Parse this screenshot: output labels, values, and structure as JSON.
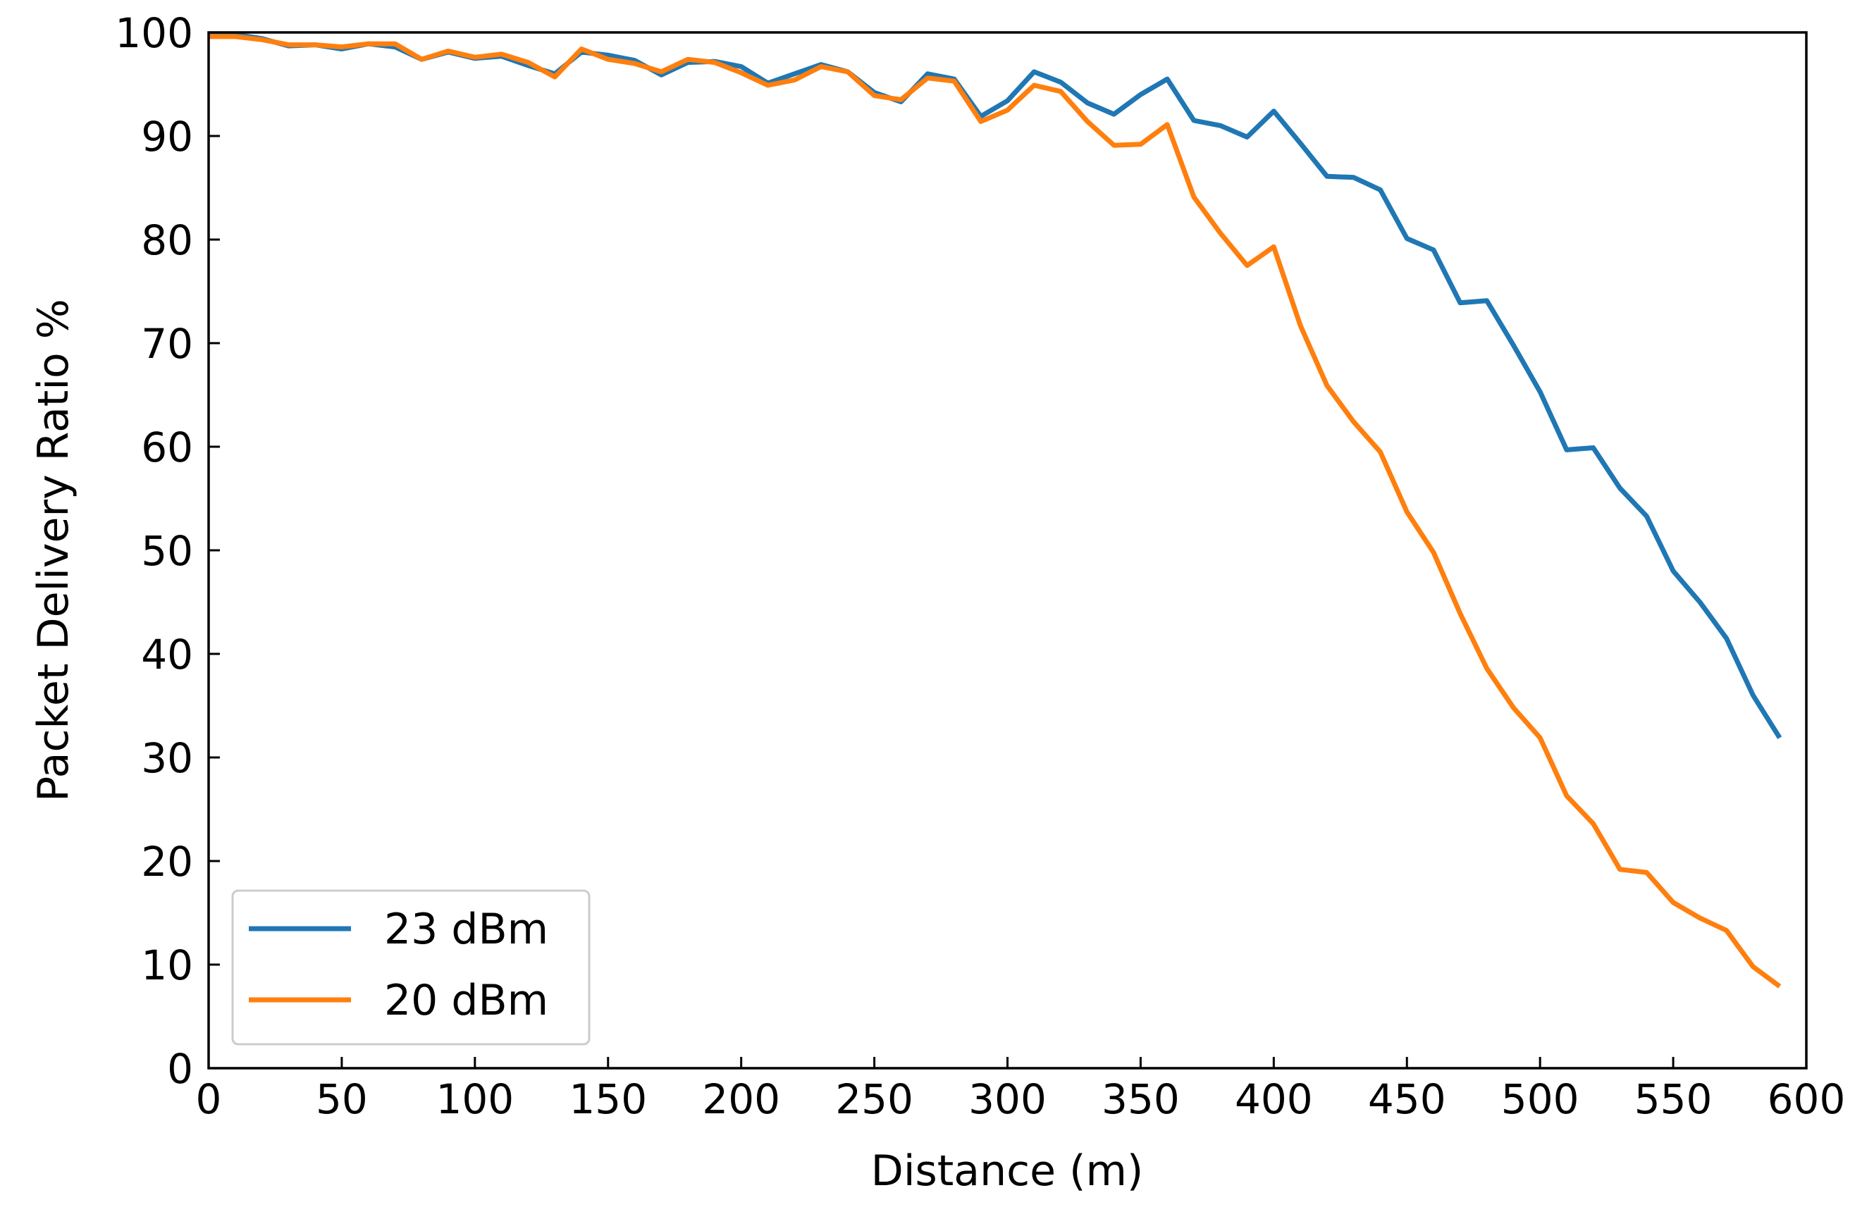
{
  "chart_data": {
    "type": "line",
    "title": "",
    "xlabel": "Distance (m)",
    "ylabel": "Packet Delivery Ratio %",
    "xlim": [
      0,
      600
    ],
    "ylim": [
      0,
      100
    ],
    "xticks": [
      0,
      50,
      100,
      150,
      200,
      250,
      300,
      350,
      400,
      450,
      500,
      550,
      600
    ],
    "yticks": [
      0,
      10,
      20,
      30,
      40,
      50,
      60,
      70,
      80,
      90,
      100
    ],
    "grid": false,
    "legend_position": "lower-left",
    "x": [
      0,
      10,
      20,
      30,
      40,
      50,
      60,
      70,
      80,
      90,
      100,
      110,
      120,
      130,
      140,
      150,
      160,
      170,
      180,
      190,
      200,
      210,
      220,
      230,
      240,
      250,
      260,
      270,
      280,
      290,
      300,
      310,
      320,
      330,
      340,
      350,
      360,
      370,
      380,
      390,
      400,
      410,
      420,
      430,
      440,
      450,
      460,
      470,
      480,
      490,
      500,
      510,
      520,
      530,
      540,
      550,
      560,
      570,
      580,
      590
    ],
    "series": [
      {
        "name": "23 dBm",
        "color": "#1f77b4",
        "values": [
          99.8,
          99.8,
          99.4,
          98.7,
          98.8,
          98.4,
          98.9,
          98.6,
          97.4,
          98.1,
          97.5,
          97.7,
          96.8,
          96.0,
          98.1,
          97.8,
          97.3,
          95.9,
          97.1,
          97.2,
          96.7,
          95.1,
          96.0,
          96.9,
          96.2,
          94.2,
          93.3,
          96.0,
          95.5,
          91.9,
          93.4,
          96.2,
          95.2,
          93.2,
          92.1,
          94.0,
          95.5,
          91.5,
          91.0,
          89.9,
          92.4,
          89.3,
          86.1,
          86.0,
          84.8,
          80.1,
          79.0,
          73.9,
          74.1,
          69.8,
          65.3,
          59.7,
          59.9,
          56.0,
          53.3,
          48.0,
          45.0,
          41.5,
          36.0,
          31.9
        ]
      },
      {
        "name": "20 dBm",
        "color": "#ff7f0e",
        "values": [
          99.6,
          99.6,
          99.3,
          98.8,
          98.8,
          98.6,
          98.9,
          98.9,
          97.4,
          98.2,
          97.6,
          97.9,
          97.1,
          95.7,
          98.4,
          97.4,
          97.0,
          96.2,
          97.4,
          97.1,
          96.1,
          94.9,
          95.4,
          96.7,
          96.2,
          93.9,
          93.5,
          95.6,
          95.3,
          91.4,
          92.5,
          94.9,
          94.3,
          91.4,
          89.1,
          89.2,
          91.1,
          84.1,
          80.6,
          77.5,
          79.3,
          71.7,
          65.9,
          62.4,
          59.5,
          53.7,
          49.8,
          43.9,
          38.6,
          34.8,
          31.9,
          26.3,
          23.6,
          19.2,
          18.9,
          16.0,
          14.5,
          13.3,
          9.8,
          7.9
        ]
      }
    ]
  }
}
